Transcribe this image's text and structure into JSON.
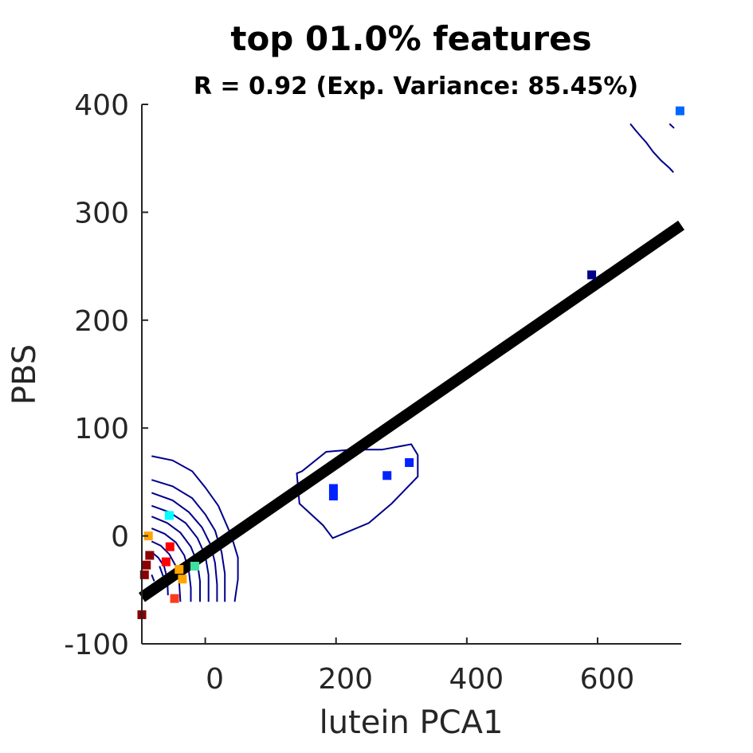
{
  "chart_data": {
    "type": "scatter",
    "title": "top 01.0% features",
    "subtitle": "R = 0.92 (Exp. Variance: 85.45%)",
    "xlabel": "lutein PCA1",
    "ylabel": "PBS",
    "xlim": [
      -97,
      728
    ],
    "ylim": [
      -100,
      400
    ],
    "x_ticks": [
      {
        "value": 0,
        "label": "0"
      },
      {
        "value": 200,
        "label": "200"
      },
      {
        "value": 400,
        "label": "400"
      },
      {
        "value": 600,
        "label": "600"
      }
    ],
    "y_ticks": [
      {
        "value": -100,
        "label": "-100"
      },
      {
        "value": 0,
        "label": "0"
      },
      {
        "value": 100,
        "label": "100"
      },
      {
        "value": 200,
        "label": "200"
      },
      {
        "value": 300,
        "label": "300"
      },
      {
        "value": 400,
        "label": "400"
      }
    ],
    "grid": false,
    "regression_line": {
      "x": [
        -97,
        728
      ],
      "y": [
        -57,
        288
      ],
      "color": "#000000"
    },
    "points": [
      {
        "x": -97,
        "y": -73,
        "color": "#8b0000"
      },
      {
        "x": -93,
        "y": -36,
        "color": "#8b0000"
      },
      {
        "x": -90,
        "y": -27,
        "color": "#8b0000"
      },
      {
        "x": -85,
        "y": -18,
        "color": "#8b0000"
      },
      {
        "x": -87,
        "y": 0,
        "color": "#ffa500"
      },
      {
        "x": -60,
        "y": -24,
        "color": "#ff0000"
      },
      {
        "x": -54,
        "y": -10,
        "color": "#ff0000"
      },
      {
        "x": -55,
        "y": 19,
        "color": "#00ffff"
      },
      {
        "x": -47,
        "y": -58,
        "color": "#ff3a1a"
      },
      {
        "x": -40,
        "y": -31,
        "color": "#ffa500"
      },
      {
        "x": -35,
        "y": -40,
        "color": "#ffa500"
      },
      {
        "x": -16,
        "y": -28,
        "color": "#40e0a0"
      },
      {
        "x": 196,
        "y": 44,
        "color": "#0022ff"
      },
      {
        "x": 196,
        "y": 37,
        "color": "#0022ff"
      },
      {
        "x": 278,
        "y": 56,
        "color": "#0022ff"
      },
      {
        "x": 312,
        "y": 68,
        "color": "#0022ff"
      },
      {
        "x": 591,
        "y": 242,
        "color": "#000088"
      },
      {
        "x": 726,
        "y": 394,
        "color": "#0066ff"
      }
    ],
    "contours": [
      {
        "color": "#00008b",
        "closed": true,
        "points": [
          [
            140,
            58
          ],
          [
            148,
            60
          ],
          [
            185,
            78
          ],
          [
            225,
            80
          ],
          [
            270,
            80
          ],
          [
            315,
            85
          ],
          [
            325,
            75
          ],
          [
            325,
            55
          ],
          [
            285,
            30
          ],
          [
            250,
            12
          ],
          [
            195,
            -2
          ],
          [
            180,
            10
          ],
          [
            144,
            30
          ],
          [
            140,
            58
          ]
        ]
      },
      {
        "color": "#00008b",
        "closed": false,
        "points": [
          [
            -82,
            74
          ],
          [
            -50,
            70
          ],
          [
            -20,
            60
          ],
          [
            0,
            45
          ],
          [
            20,
            28
          ],
          [
            40,
            0
          ],
          [
            50,
            -20
          ],
          [
            50,
            -40
          ],
          [
            45,
            -61
          ]
        ]
      },
      {
        "color": "#00008b",
        "closed": false,
        "points": [
          [
            -82,
            52
          ],
          [
            -50,
            46
          ],
          [
            -20,
            35
          ],
          [
            0,
            20
          ],
          [
            15,
            5
          ],
          [
            25,
            -15
          ],
          [
            30,
            -35
          ],
          [
            30,
            -61
          ]
        ]
      },
      {
        "color": "#00008b",
        "closed": false,
        "points": [
          [
            -82,
            40
          ],
          [
            -50,
            33
          ],
          [
            -25,
            22
          ],
          [
            -5,
            8
          ],
          [
            8,
            -8
          ],
          [
            15,
            -25
          ],
          [
            18,
            -45
          ],
          [
            18,
            -61
          ]
        ]
      },
      {
        "color": "#00008b",
        "closed": false,
        "points": [
          [
            -82,
            28
          ],
          [
            -55,
            22
          ],
          [
            -30,
            12
          ],
          [
            -12,
            -2
          ],
          [
            0,
            -18
          ],
          [
            5,
            -36
          ],
          [
            5,
            -61
          ]
        ]
      },
      {
        "color": "#00008b",
        "closed": false,
        "points": [
          [
            -82,
            18
          ],
          [
            -58,
            12
          ],
          [
            -38,
            3
          ],
          [
            -22,
            -10
          ],
          [
            -12,
            -25
          ],
          [
            -8,
            -42
          ],
          [
            -8,
            -61
          ]
        ]
      },
      {
        "color": "#00008b",
        "closed": false,
        "points": [
          [
            -82,
            7
          ],
          [
            -62,
            2
          ],
          [
            -45,
            -6
          ],
          [
            -32,
            -18
          ],
          [
            -25,
            -33
          ],
          [
            -22,
            -48
          ],
          [
            -22,
            -61
          ]
        ]
      },
      {
        "color": "#00008b",
        "closed": false,
        "points": [
          [
            -82,
            -5
          ],
          [
            -68,
            -9
          ],
          [
            -55,
            -17
          ],
          [
            -45,
            -28
          ],
          [
            -40,
            -42
          ],
          [
            -38,
            -61
          ]
        ]
      },
      {
        "color": "#00008b",
        "closed": false,
        "points": [
          [
            -82,
            -15
          ],
          [
            -72,
            -20
          ],
          [
            -63,
            -28
          ],
          [
            -58,
            -40
          ],
          [
            -57,
            -55
          ]
        ]
      },
      {
        "color": "#00008b",
        "closed": false,
        "points": [
          [
            -70,
            -28
          ],
          [
            -64,
            -38
          ]
        ]
      },
      {
        "color": "#00008b",
        "closed": false,
        "points": [
          [
            -82,
            -36
          ],
          [
            -78,
            -42
          ]
        ]
      },
      {
        "color": "#00008b",
        "closed": false,
        "points": [
          [
            650,
            382
          ],
          [
            658,
            376
          ],
          [
            668,
            369
          ],
          [
            674,
            365
          ],
          [
            685,
            356
          ],
          [
            697,
            348
          ],
          [
            710,
            341
          ],
          [
            716,
            337
          ],
          [
            710,
            341
          ]
        ]
      },
      {
        "color": "#00008b",
        "closed": false,
        "points": [
          [
            710,
            382
          ],
          [
            717,
            378
          ]
        ]
      }
    ]
  }
}
